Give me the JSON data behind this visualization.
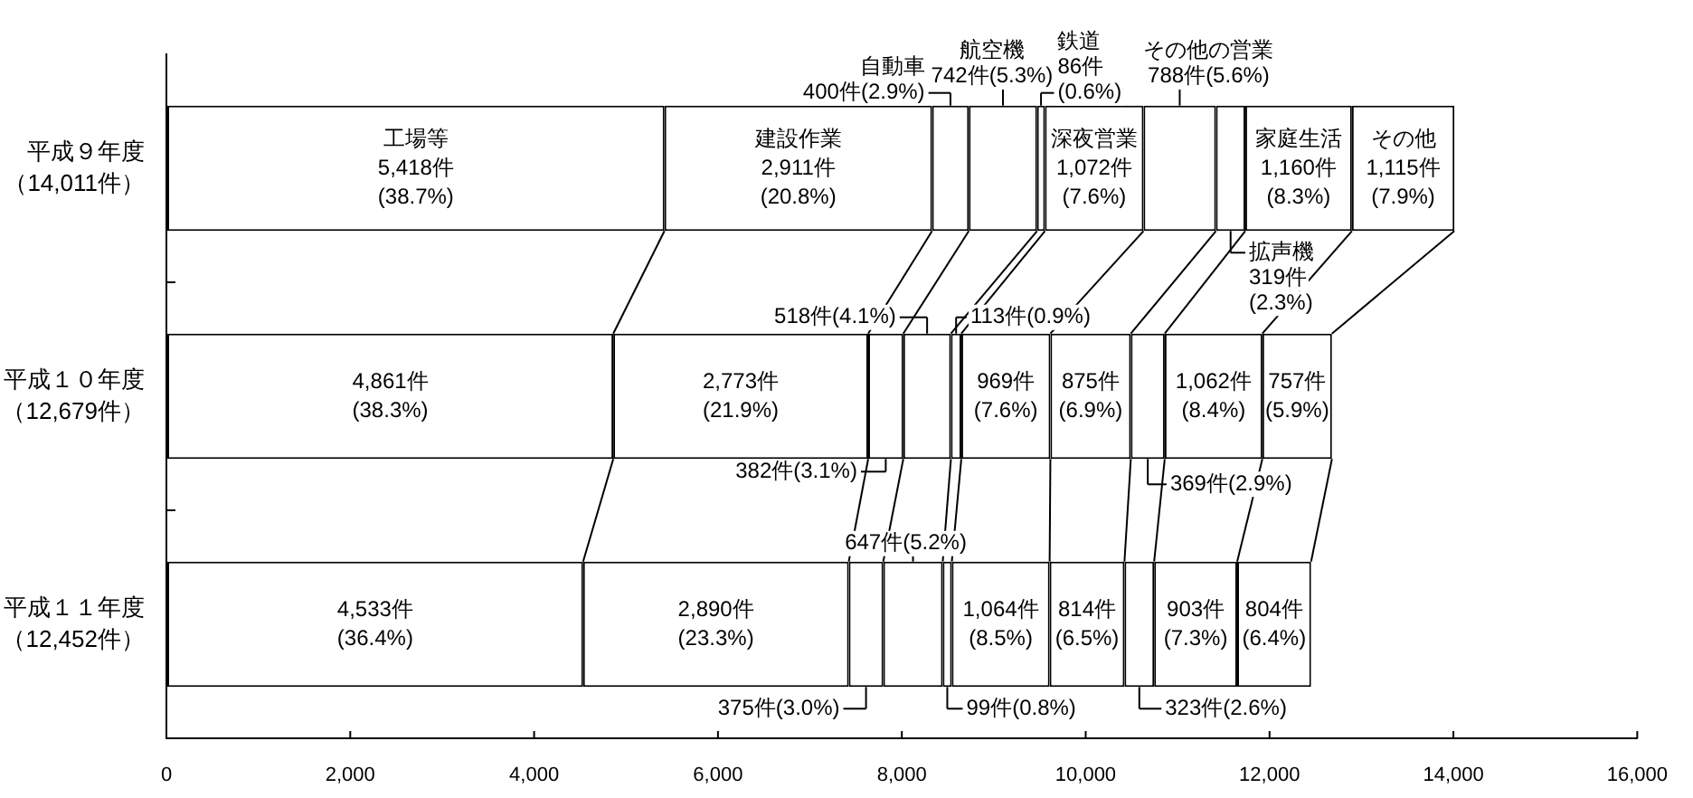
{
  "chart_data": {
    "type": "bar",
    "orientation": "horizontal",
    "stacked": true,
    "categories": [
      "平成９年度（14,011件）",
      "平成１０年度（12,679件）",
      "平成１１年度（12,452件）"
    ],
    "series": [
      {
        "name": "工場等",
        "color": "#ffffff",
        "values": [
          5418,
          4861,
          4533
        ],
        "value_labels": [
          "5,418件\n(38.7%)",
          "4,861件\n(38.3%)",
          "4,533件\n(36.4%)"
        ]
      },
      {
        "name": "建設作業",
        "color": "#ffffff",
        "values": [
          2911,
          2773,
          2890
        ],
        "value_labels": [
          "2,911件\n(20.8%)",
          "2,773件\n(21.9%)",
          "2,890件\n(23.3%)"
        ]
      },
      {
        "name": "自動車",
        "color": "#ffffff",
        "values": [
          400,
          382,
          375
        ],
        "value_labels": [
          "400件(2.9%)",
          "382件(3.1%)",
          "375件(3.0%)"
        ]
      },
      {
        "name": "航空機",
        "color": "#ffffff",
        "values": [
          742,
          518,
          647
        ],
        "value_labels": [
          "742件(5.3%)",
          "518件(4.1%)",
          "647件(5.2%)"
        ]
      },
      {
        "name": "鉄道",
        "color": "#ffffff",
        "values": [
          86,
          113,
          99
        ],
        "value_labels": [
          "86件\n(0.6%)",
          "113件(0.9%)",
          "99件(0.8%)"
        ]
      },
      {
        "name": "深夜営業",
        "color": "#ffffff",
        "values": [
          1072,
          969,
          1064
        ],
        "value_labels": [
          "1,072件\n(7.6%)",
          "969件\n(7.6%)",
          "1,064件\n(8.5%)"
        ]
      },
      {
        "name": "その他の営業",
        "color": "#ffffff",
        "values": [
          788,
          875,
          814
        ],
        "value_labels": [
          "788件(5.6%)",
          "875件\n(6.9%)",
          "814件\n(6.5%)"
        ]
      },
      {
        "name": "拡声機",
        "color": "#ffffff",
        "values": [
          319,
          369,
          323
        ],
        "value_labels": [
          "319件\n(2.3%)",
          "369件(2.9%)",
          "323件(2.6%)"
        ]
      },
      {
        "name": "家庭生活",
        "color": "#ffffff",
        "values": [
          1160,
          1062,
          903
        ],
        "value_labels": [
          "1,160件\n(8.3%)",
          "1,062件\n(8.4%)",
          "903件\n(7.3%)"
        ]
      },
      {
        "name": "その他",
        "color": "#ffffff",
        "values": [
          1115,
          757,
          804
        ],
        "value_labels": [
          "1,115件\n(7.9%)",
          "757件\n(5.9%)",
          "804件\n(6.4%)"
        ]
      }
    ],
    "xlim": [
      0,
      16000
    ],
    "xticks": [
      0,
      {
        "value": 2000,
        "label": "2,000"
      },
      {
        "value": 4000,
        "label": "4,000"
      },
      {
        "value": 6000,
        "label": "6,000"
      },
      {
        "value": 8000,
        "label": "8,000"
      },
      {
        "value": 10000,
        "label": "10,000"
      },
      {
        "value": 12000,
        "label": "12,000"
      },
      {
        "value": 14000,
        "label": "14,000"
      },
      {
        "value": 16000,
        "label": "16,000"
      }
    ],
    "grid": false,
    "legend": false
  }
}
